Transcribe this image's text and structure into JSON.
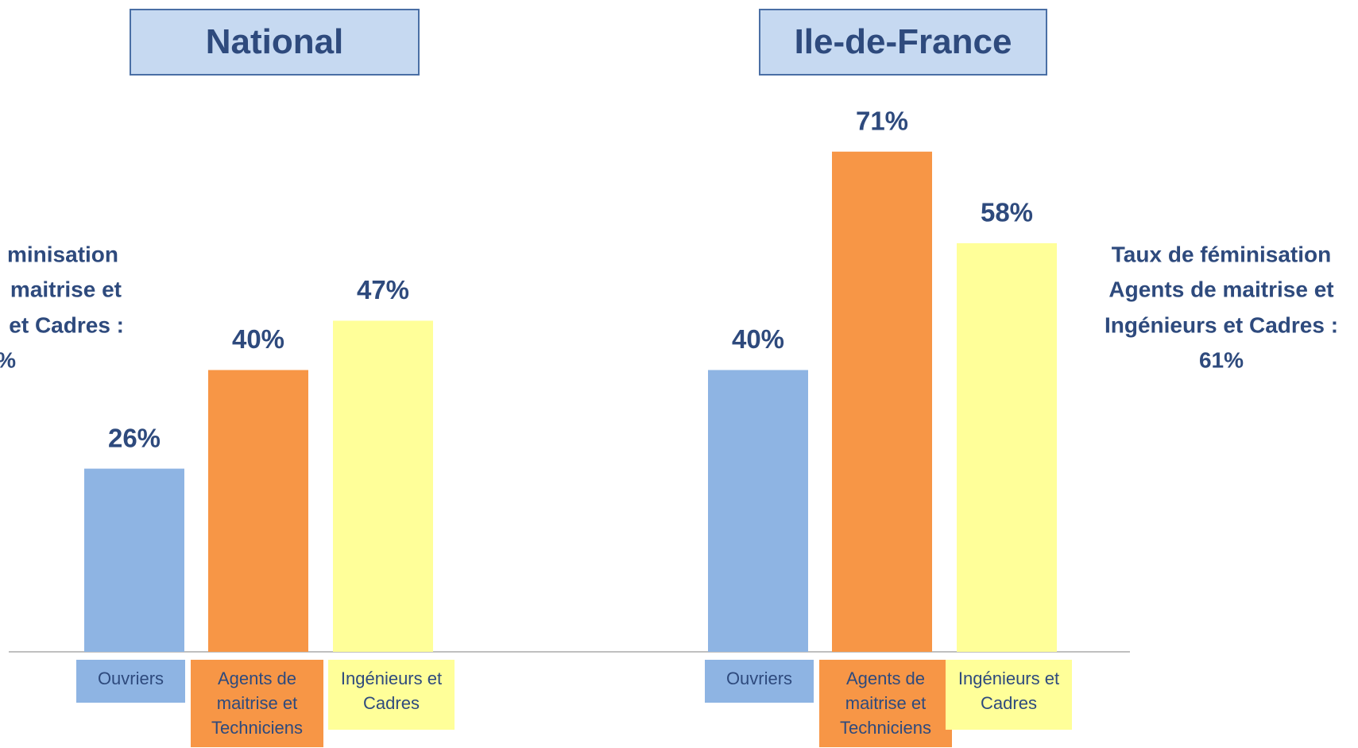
{
  "chart_data": [
    {
      "type": "bar",
      "title": "National",
      "categories": [
        "Ouvriers",
        "Agents de maitrise et Techniciens",
        "Ingénieurs et Cadres"
      ],
      "values": [
        26,
        40,
        47
      ],
      "value_labels": [
        "26%",
        "40%",
        "47%"
      ],
      "colors": [
        "#8eb4e3",
        "#f79646",
        "#ffff99"
      ],
      "ylim": [
        0,
        80
      ],
      "annotation": [
        "minisation",
        "maitrise et",
        "et Cadres :",
        "%"
      ]
    },
    {
      "type": "bar",
      "title": "Ile-de-France",
      "categories": [
        "Ouvriers",
        "Agents de maitrise et Techniciens",
        "Ingénieurs et Cadres"
      ],
      "values": [
        40,
        71,
        58
      ],
      "value_labels": [
        "40%",
        "71%",
        "58%"
      ],
      "colors": [
        "#8eb4e3",
        "#f79646",
        "#ffff99"
      ],
      "ylim": [
        0,
        80
      ],
      "annotation": [
        "Taux de féminisation",
        "Agents de maitrise et",
        "Ingénieurs et Cadres :",
        "61%"
      ]
    }
  ]
}
